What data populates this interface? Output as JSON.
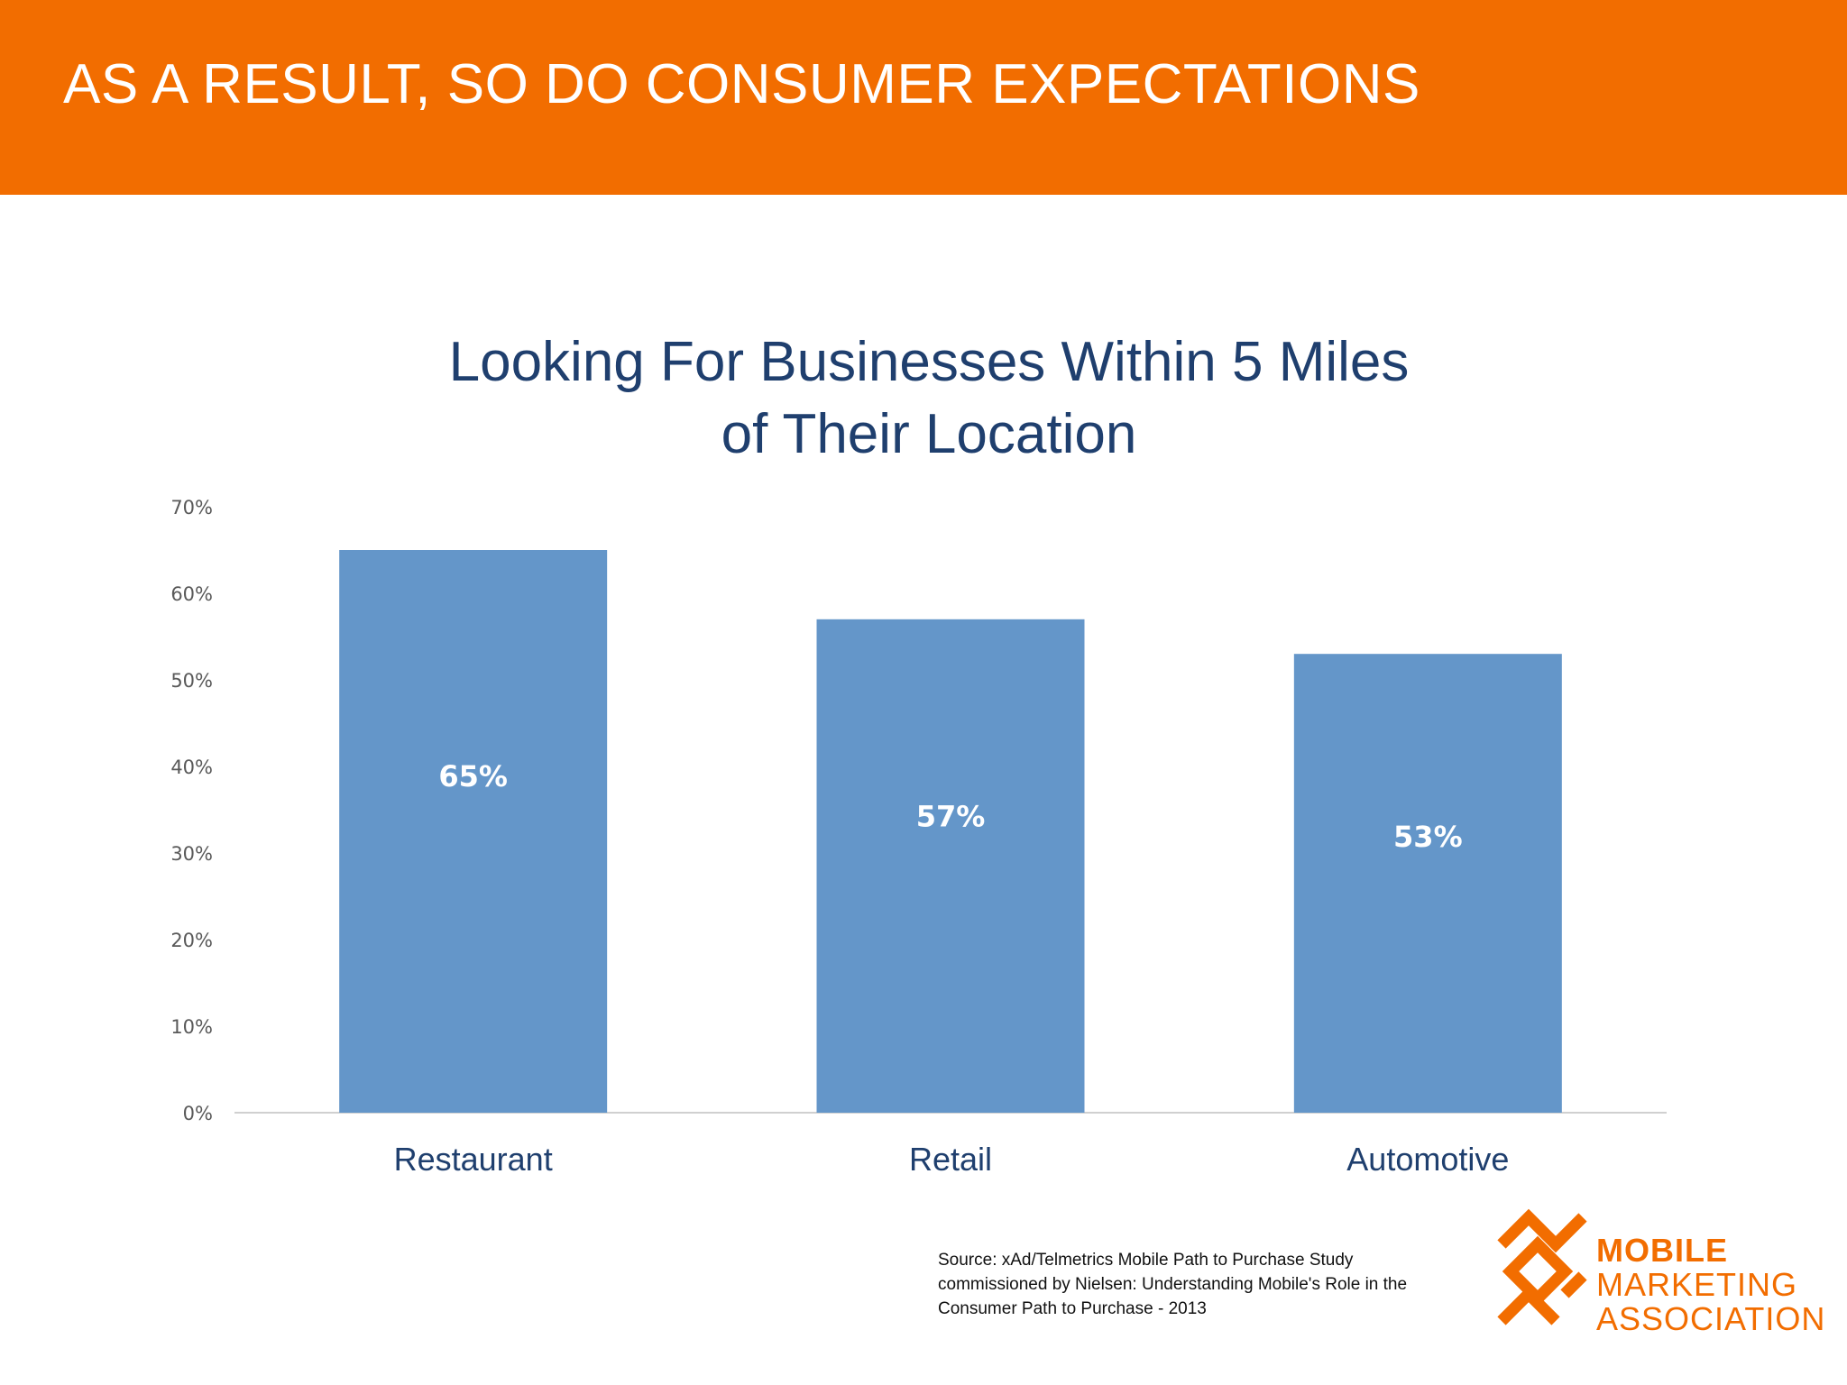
{
  "header": {
    "title": "AS A RESULT, SO DO CONSUMER EXPECTATIONS"
  },
  "chart_data": {
    "type": "bar",
    "title_lines": [
      "Looking For Businesses Within 5 Miles",
      "of Their Location"
    ],
    "categories": [
      "Restaurant",
      "Retail",
      "Automotive"
    ],
    "values": [
      65,
      57,
      53
    ],
    "data_labels": [
      "65%",
      "57%",
      "53%"
    ],
    "y_ticks": [
      "0%",
      "10%",
      "20%",
      "30%",
      "40%",
      "50%",
      "60%",
      "70%"
    ],
    "ylim": [
      0,
      70
    ],
    "bar_color": "#6496c9",
    "grid": false,
    "legend": "none"
  },
  "source": {
    "lines": [
      "Source: xAd/Telmetrics Mobile Path to Purchase Study",
      "commissioned by Nielsen: Understanding Mobile's Role in the",
      "Consumer Path to Purchase - 2013"
    ]
  },
  "logo": {
    "lines": [
      "MOBILE",
      "MARKETING",
      "ASSOCIATION"
    ],
    "color": "#f26d00"
  }
}
